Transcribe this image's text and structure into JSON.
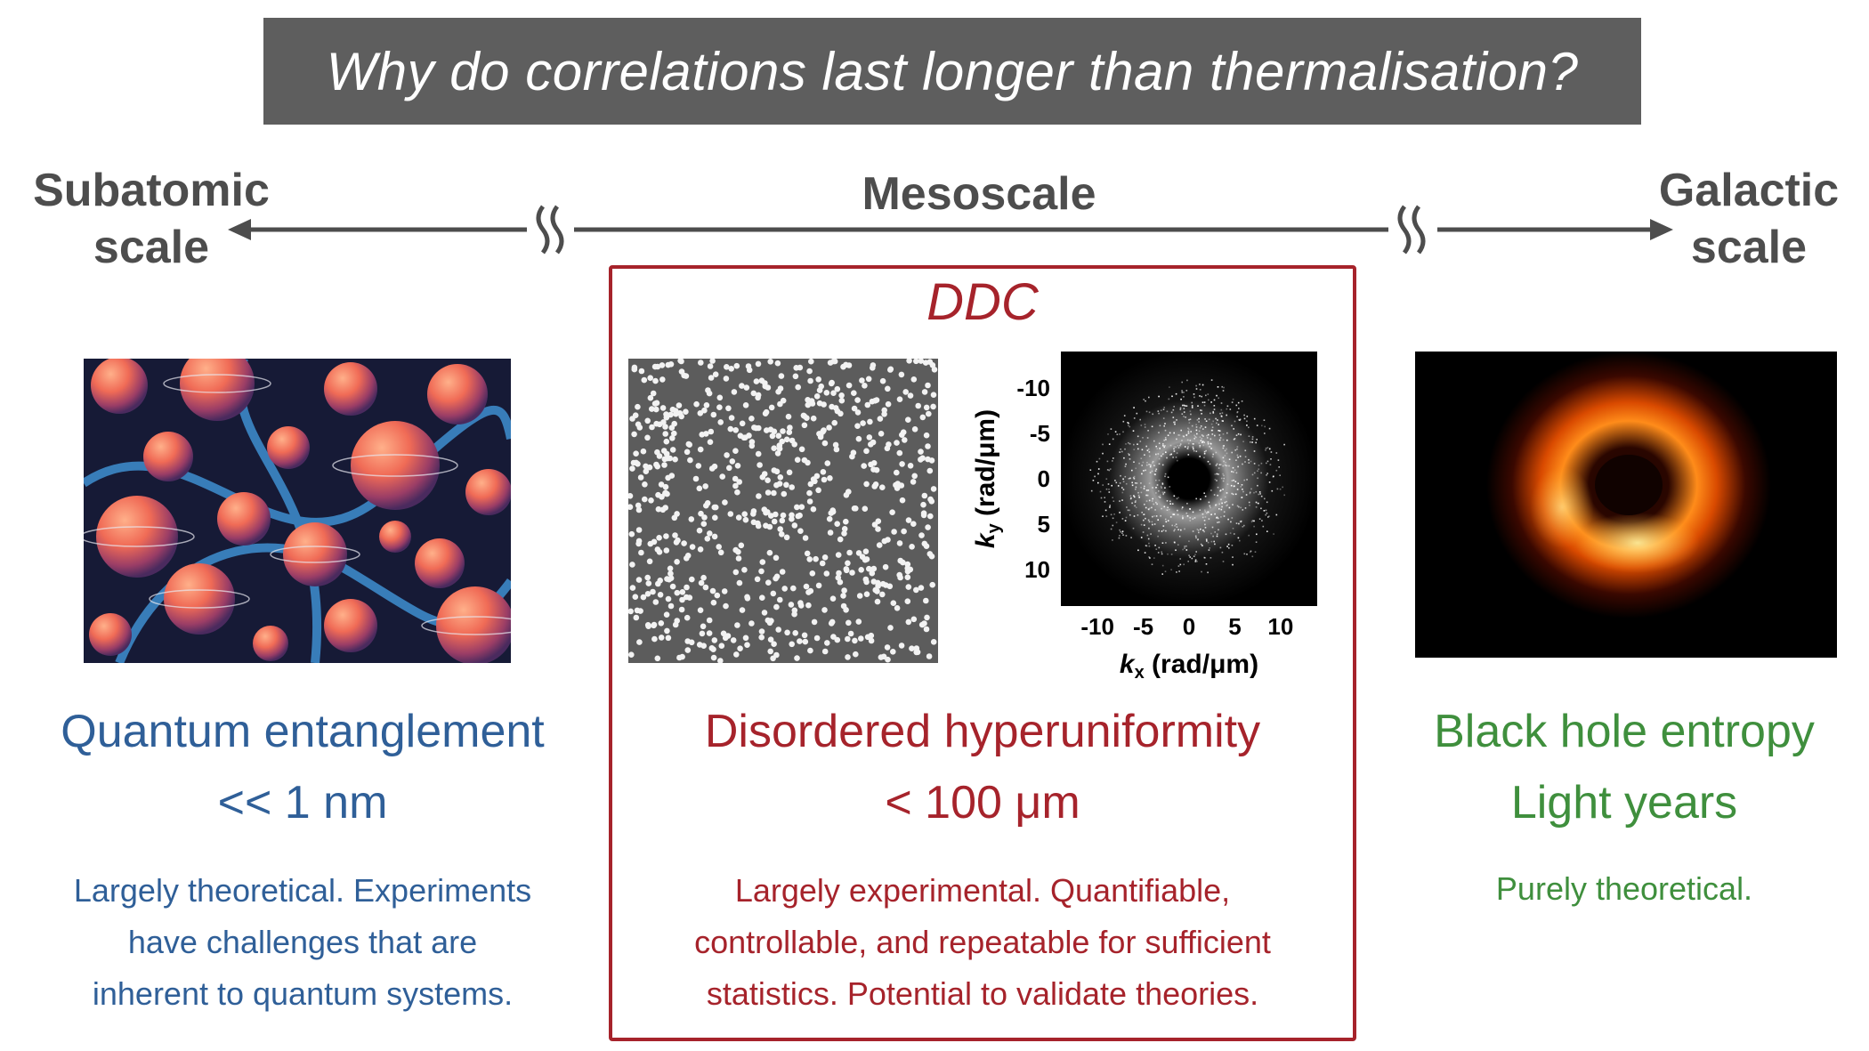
{
  "title": "Why do correlations last longer than thermalisation?",
  "scale_axis": {
    "left_label_line1": "Subatomic",
    "left_label_line2": "scale",
    "center_label": "Mesoscale",
    "right_label_line1": "Galactic",
    "right_label_line2": "scale"
  },
  "left_panel": {
    "heading": "Quantum entanglement",
    "scale": "<< 1 nm",
    "description_lines": [
      "Largely theoretical. Experiments",
      "have challenges that are",
      "inherent to quantum systems."
    ]
  },
  "center_panel": {
    "box_title": "DDC",
    "heading": "Disordered hyperuniformity",
    "scale": "< 100 μm",
    "description_lines": [
      "Largely experimental. Quantifiable,",
      "controllable, and repeatable for sufficient",
      "statistics. Potential to validate theories."
    ],
    "fft_plot": {
      "x_ticks": [
        "-10",
        "-5",
        "0",
        "5",
        "10"
      ],
      "y_ticks": [
        "-10",
        "-5",
        "0",
        "5",
        "10"
      ],
      "xlabel_k": "k",
      "xlabel_sub": "x",
      "xlabel_unit": " (rad/μm)",
      "ylabel_k": "k",
      "ylabel_sub": "y",
      "ylabel_unit": " (rad/μm)"
    }
  },
  "right_panel": {
    "heading": "Black hole entropy",
    "scale": "Light years",
    "description_lines": [
      "Purely theoretical."
    ]
  },
  "colors": {
    "blue": "#2f5f98",
    "red": "#a6232b",
    "green": "#3f8f3d",
    "title_bar": "#5e5e5e",
    "axis": "#4d4d4d"
  }
}
